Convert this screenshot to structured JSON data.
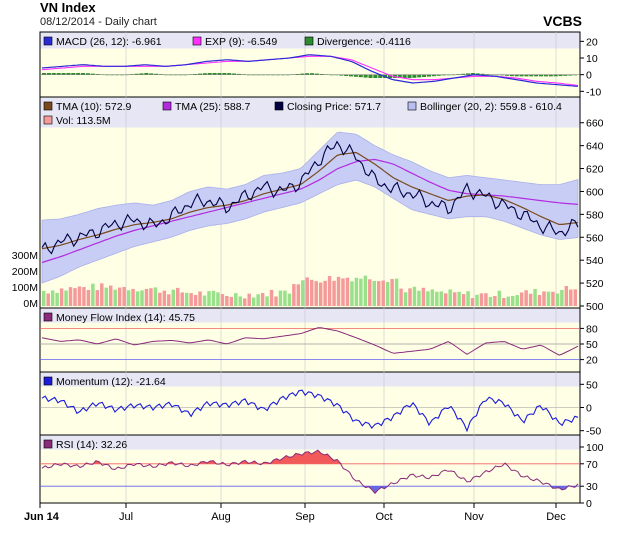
{
  "header": {
    "title": "VN Index",
    "subtitle": "08/12/2014  -  Daily chart",
    "brand": "VCBS"
  },
  "colors": {
    "panel_bg": "#ffffe6",
    "legend_bg": "#e6e6f5",
    "grid": "#c8c8c8",
    "macd": "#2b2bd6",
    "signal": "#ff30ff",
    "divergence": "#2e8b2e",
    "tma10": "#7a4a1c",
    "tma25": "#b32ae0",
    "close": "#000040",
    "boll_fill": "#c8cdf5",
    "vol_up": "#99e08a",
    "vol_down": "#f49a9a",
    "mfi": "#8a2a7a",
    "momentum": "#1b1bd8",
    "rsi": "#8a2a7a",
    "overbought_fill": "#f25a5a",
    "oversold_fill": "#6a6ae0",
    "ref_red": "#f06060",
    "ref_blue": "#6060f0"
  },
  "chart_data": [
    {
      "type": "line",
      "panel": "MACD",
      "legend": [
        {
          "label": "MACD (26, 12): -6.961",
          "color": "#2b2bd6"
        },
        {
          "label": "EXP (9): -6.549",
          "color": "#ff30ff"
        },
        {
          "label": "Divergence: -0.4116",
          "color": "#2e8b2e"
        }
      ],
      "y_ticks": [
        "20",
        "10",
        "0",
        "-10"
      ],
      "ylim": [
        -11,
        22
      ],
      "series": [
        {
          "name": "MACD",
          "values": [
            4,
            5,
            6,
            5,
            5,
            6,
            5,
            6,
            8,
            9,
            8,
            9,
            10,
            12,
            11,
            8,
            2,
            -3,
            -5,
            -4,
            -2,
            0,
            -1,
            -3,
            -5,
            -6,
            -7
          ]
        },
        {
          "name": "EXP",
          "values": [
            3,
            4,
            5,
            5,
            5,
            5,
            5,
            6,
            7,
            8,
            8,
            9,
            10,
            11,
            11,
            9,
            4,
            -1,
            -3,
            -3,
            -2,
            -1,
            -1,
            -2,
            -4,
            -5,
            -6.5
          ]
        },
        {
          "name": "Divergence",
          "values": [
            1,
            1,
            1,
            0,
            0,
            1,
            0,
            0,
            1,
            1,
            0,
            0,
            0,
            1,
            0,
            -1,
            -2,
            -2,
            -2,
            -1,
            0,
            1,
            0,
            -1,
            -1,
            -1,
            -0.4
          ]
        }
      ]
    },
    {
      "type": "line",
      "panel": "Price",
      "legend": [
        {
          "label": "TMA (10): 572.9",
          "color": "#7a4a1c"
        },
        {
          "label": "TMA (25): 588.7",
          "color": "#b32ae0"
        },
        {
          "label": "Closing Price: 571.7",
          "color": "#000040"
        },
        {
          "label": "Bollinger (20, 2): 559.8 - 610.4",
          "color": "#b8bff0"
        },
        {
          "label": "Vol: 113.5M",
          "color": "#f49a9a"
        }
      ],
      "y_ticks": [
        "660",
        "640",
        "620",
        "600",
        "580",
        "560",
        "540",
        "520",
        "500"
      ],
      "vol_ticks": [
        "300M",
        "200M",
        "100M",
        "0M"
      ],
      "ylim": [
        500,
        665
      ],
      "series": [
        {
          "name": "Closing Price",
          "values": [
            548,
            556,
            560,
            565,
            572,
            575,
            570,
            578,
            590,
            592,
            586,
            596,
            604,
            600,
            608,
            628,
            642,
            630,
            610,
            602,
            598,
            590,
            585,
            602,
            596,
            588,
            580,
            570,
            564,
            572
          ]
        },
        {
          "name": "TMA (10)",
          "values": [
            550,
            553,
            558,
            562,
            567,
            571,
            573,
            576,
            582,
            586,
            588,
            592,
            598,
            602,
            606,
            618,
            632,
            634,
            624,
            612,
            604,
            598,
            592,
            596,
            597,
            593,
            586,
            578,
            571,
            572.9
          ]
        },
        {
          "name": "TMA (25)",
          "values": [
            538,
            543,
            549,
            555,
            561,
            566,
            570,
            574,
            578,
            582,
            586,
            590,
            594,
            598,
            602,
            610,
            620,
            626,
            628,
            624,
            616,
            608,
            601,
            598,
            597,
            596,
            594,
            592,
            590,
            588.7
          ]
        },
        {
          "name": "Bollinger Upper",
          "values": [
            575,
            576,
            580,
            585,
            588,
            590,
            588,
            592,
            600,
            604,
            602,
            606,
            614,
            616,
            620,
            636,
            652,
            650,
            640,
            632,
            626,
            618,
            612,
            614,
            612,
            610,
            608,
            606,
            606,
            610.4
          ]
        },
        {
          "name": "Bollinger Lower",
          "values": [
            520,
            526,
            534,
            540,
            546,
            552,
            556,
            560,
            566,
            570,
            572,
            576,
            582,
            586,
            590,
            598,
            606,
            610,
            604,
            594,
            584,
            580,
            576,
            578,
            578,
            574,
            568,
            562,
            558,
            559.8
          ]
        }
      ]
    },
    {
      "type": "line",
      "panel": "Money Flow Index",
      "legend": [
        {
          "label": "Money Flow Index (14): 45.75",
          "color": "#8a2a7a"
        }
      ],
      "y_ticks": [
        "80",
        "50",
        "20"
      ],
      "ylim": [
        0,
        100
      ],
      "series": [
        {
          "name": "Money Flow Index (14)",
          "values": [
            62,
            55,
            58,
            50,
            60,
            48,
            55,
            57,
            52,
            58,
            50,
            62,
            60,
            65,
            70,
            82,
            75,
            62,
            48,
            32,
            36,
            40,
            55,
            30,
            52,
            55,
            40,
            48,
            28,
            45.75
          ]
        }
      ]
    },
    {
      "type": "line",
      "panel": "Momentum",
      "legend": [
        {
          "label": "Momentum (12): -21.64",
          "color": "#1b1bd8"
        }
      ],
      "y_ticks": [
        "50",
        "0",
        "-50"
      ],
      "ylim": [
        -55,
        55
      ],
      "series": [
        {
          "name": "Momentum (12)",
          "values": [
            20,
            15,
            -10,
            10,
            -5,
            5,
            0,
            8,
            -15,
            10,
            5,
            15,
            -5,
            20,
            35,
            25,
            5,
            -30,
            -40,
            -20,
            10,
            -35,
            5,
            -45,
            20,
            10,
            -30,
            5,
            -35,
            -21.64
          ]
        }
      ]
    },
    {
      "type": "line",
      "panel": "RSI",
      "legend": [
        {
          "label": "RSI (14): 32.26",
          "color": "#8a2a7a"
        }
      ],
      "y_ticks": [
        "100",
        "70",
        "30",
        "0"
      ],
      "ylim": [
        0,
        100
      ],
      "series": [
        {
          "name": "RSI (14)",
          "values": [
            62,
            70,
            65,
            74,
            60,
            70,
            65,
            72,
            66,
            75,
            68,
            74,
            70,
            80,
            88,
            92,
            75,
            40,
            20,
            35,
            50,
            45,
            60,
            38,
            55,
            70,
            48,
            38,
            24,
            32.26
          ]
        }
      ]
    }
  ],
  "x_axis": {
    "labels": [
      "Jun 14",
      "Jul",
      "Aug",
      "Sep",
      "Oct",
      "Nov",
      "Dec"
    ]
  }
}
